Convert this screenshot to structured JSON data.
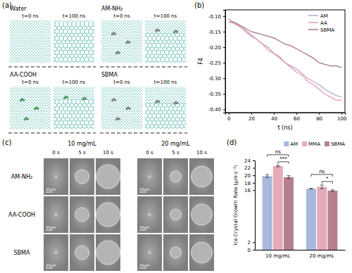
{
  "panel_a": {
    "label": "(a)",
    "systems": [
      {
        "name": "Water",
        "times": [
          "t=0 ns",
          "t=100 ns"
        ]
      },
      {
        "name": "AM-NH₂",
        "times": [
          "t=0 ns",
          "t=100 ns"
        ]
      },
      {
        "name": "AA-COOH",
        "times": [
          "t=0 ns",
          "t=100 ns"
        ]
      },
      {
        "name": "SBMA",
        "times": [
          "t=0 ns",
          "t=100 ns"
        ]
      }
    ]
  },
  "panel_c": {
    "label": "(c)",
    "concentrations": [
      "10 mg/mL",
      "20 mg/mL"
    ],
    "times": [
      "0 s",
      "5 s",
      "10 s"
    ],
    "rows": [
      "AM-NH₂",
      "AA-COOH",
      "SBMA"
    ],
    "scale_bar": "30μm"
  },
  "chart_data": [
    {
      "type": "line",
      "title": "(b)",
      "xlabel": "t (ns)",
      "ylabel": "F4",
      "x": [
        0,
        5,
        10,
        15,
        20,
        25,
        30,
        35,
        40,
        45,
        50,
        55,
        60,
        65,
        70,
        75,
        80,
        85,
        90,
        95,
        100
      ],
      "series": [
        {
          "name": "AM",
          "color": "#bba6cf",
          "values": [
            -0.11,
            -0.12,
            -0.13,
            -0.145,
            -0.16,
            -0.175,
            -0.19,
            -0.2,
            -0.22,
            -0.235,
            -0.25,
            -0.26,
            -0.27,
            -0.285,
            -0.3,
            -0.31,
            -0.32,
            -0.335,
            -0.345,
            -0.355,
            -0.36
          ]
        },
        {
          "name": "AA",
          "color": "#e79bb0",
          "values": [
            -0.11,
            -0.125,
            -0.135,
            -0.15,
            -0.165,
            -0.175,
            -0.19,
            -0.21,
            -0.22,
            -0.23,
            -0.25,
            -0.265,
            -0.28,
            -0.29,
            -0.31,
            -0.32,
            -0.335,
            -0.35,
            -0.36,
            -0.37,
            -0.37
          ]
        },
        {
          "name": "SBMA",
          "color": "#a87580",
          "values": [
            -0.12,
            -0.12,
            -0.13,
            -0.14,
            -0.15,
            -0.155,
            -0.16,
            -0.165,
            -0.17,
            -0.18,
            -0.19,
            -0.195,
            -0.205,
            -0.215,
            -0.225,
            -0.235,
            -0.25,
            -0.255,
            -0.26,
            -0.26,
            -0.265
          ]
        }
      ],
      "xlim": [
        -3,
        103
      ],
      "xticks": [
        0,
        20,
        40,
        60,
        80,
        100
      ],
      "ylim": [
        -0.41,
        -0.08
      ],
      "yticks": [
        {
          "value": -0.4,
          "label": "-0.40"
        },
        -0.35,
        {
          "value": -0.3,
          "label": "-0.30"
        },
        -0.25,
        {
          "value": -0.2,
          "label": "-0.20"
        },
        -0.15,
        {
          "value": -0.1,
          "label": "-0.10"
        }
      ],
      "legend": "upper right"
    },
    {
      "type": "bar",
      "title": "(d)",
      "ylabel": "Ice Crystal Growth Rate (μm·s⁻¹)",
      "categories": [
        "10 mg/mL",
        "20 mg/mL"
      ],
      "series": [
        {
          "name": "AM",
          "color": "#a9b9dc",
          "values": [
            19.8,
            16.4
          ],
          "error": [
            0.4,
            0.1
          ]
        },
        {
          "name": "MMA",
          "color": "#e6aab8",
          "values": [
            22.5,
            16.9
          ],
          "error": [
            0.2,
            0.5
          ]
        },
        {
          "name": "SBMA",
          "color": "#b5808c",
          "values": [
            19.5,
            15.9
          ],
          "error": [
            0.4,
            0.2
          ]
        }
      ],
      "ylim": [
        0,
        24
      ],
      "yticks": [
        0,
        2,
        16,
        18,
        20,
        22,
        24
      ],
      "legend": "upper right",
      "annotations": [
        {
          "text": "ns",
          "category": "10 mg/mL",
          "between": [
            "AM",
            "SBMA"
          ]
        },
        {
          "text": "***",
          "category": "10 mg/mL",
          "between": [
            "MMA",
            "SBMA"
          ]
        },
        {
          "text": "ns",
          "category": "20 mg/mL",
          "between": [
            "AM",
            "SBMA"
          ]
        },
        {
          "text": "*",
          "category": "20 mg/mL",
          "between": [
            "MMA",
            "SBMA"
          ]
        }
      ]
    }
  ]
}
